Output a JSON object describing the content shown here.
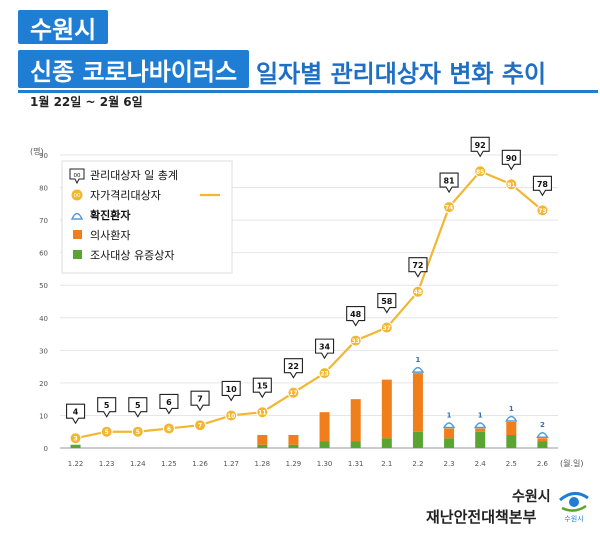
{
  "header": {
    "city": "수원시",
    "title": "신종 코로나바이러스",
    "subtitle": "일자별 관리대상자 변화 추이",
    "date_range": "1월 22일 ~ 2월 6일"
  },
  "footer": {
    "org_line1": "수원시",
    "org_line2": "재난안전대책본부",
    "emblem_label": "수원시"
  },
  "legend": {
    "badge_symbol": "00",
    "total_label": "관리대상자 일 총계",
    "self_label": "자가격리대상자",
    "confirmed_label": "확진환자",
    "suspect_label": "의사환자",
    "investigation_label": "조사대상 유증상자"
  },
  "colors": {
    "line": "#f2b632",
    "suspect": "#f07e1a",
    "investigation": "#5aa532",
    "confirmed": "#5a9bd5",
    "banner": "#1f7ed4"
  },
  "chart_data": {
    "type": "bar+line",
    "ylabel": "(명)",
    "xlabel": "(월.일)",
    "ylim": [
      0,
      90
    ],
    "yticks": [
      0,
      10,
      20,
      30,
      40,
      50,
      60,
      70,
      80,
      90
    ],
    "categories": [
      "1.22",
      "1.23",
      "1.24",
      "1.25",
      "1.26",
      "1.27",
      "1.28",
      "1.29",
      "1.30",
      "1.31",
      "2.1",
      "2.2",
      "2.3",
      "2.4",
      "2.5",
      "2.6"
    ],
    "series": [
      {
        "name": "관리대상자 일 총계",
        "values": [
          4,
          5,
          5,
          6,
          7,
          10,
          15,
          22,
          34,
          48,
          58,
          72,
          81,
          92,
          90,
          78
        ]
      },
      {
        "name": "자가격리대상자",
        "values": [
          3,
          5,
          5,
          6,
          7,
          10,
          11,
          17,
          23,
          33,
          37,
          48,
          74,
          85,
          81,
          73
        ]
      },
      {
        "name": "확진환자",
        "values": [
          0,
          0,
          0,
          0,
          0,
          0,
          0,
          0,
          0,
          0,
          0,
          1,
          1,
          1,
          1,
          2
        ]
      },
      {
        "name": "의사환자",
        "values": [
          0,
          0,
          0,
          0,
          0,
          0,
          3,
          3,
          9,
          13,
          18,
          18,
          3,
          1,
          4,
          1
        ]
      },
      {
        "name": "조사대상 유증상자",
        "values": [
          1,
          0,
          0,
          0,
          0,
          0,
          1,
          1,
          2,
          2,
          3,
          5,
          3,
          5,
          4,
          2
        ]
      }
    ]
  }
}
